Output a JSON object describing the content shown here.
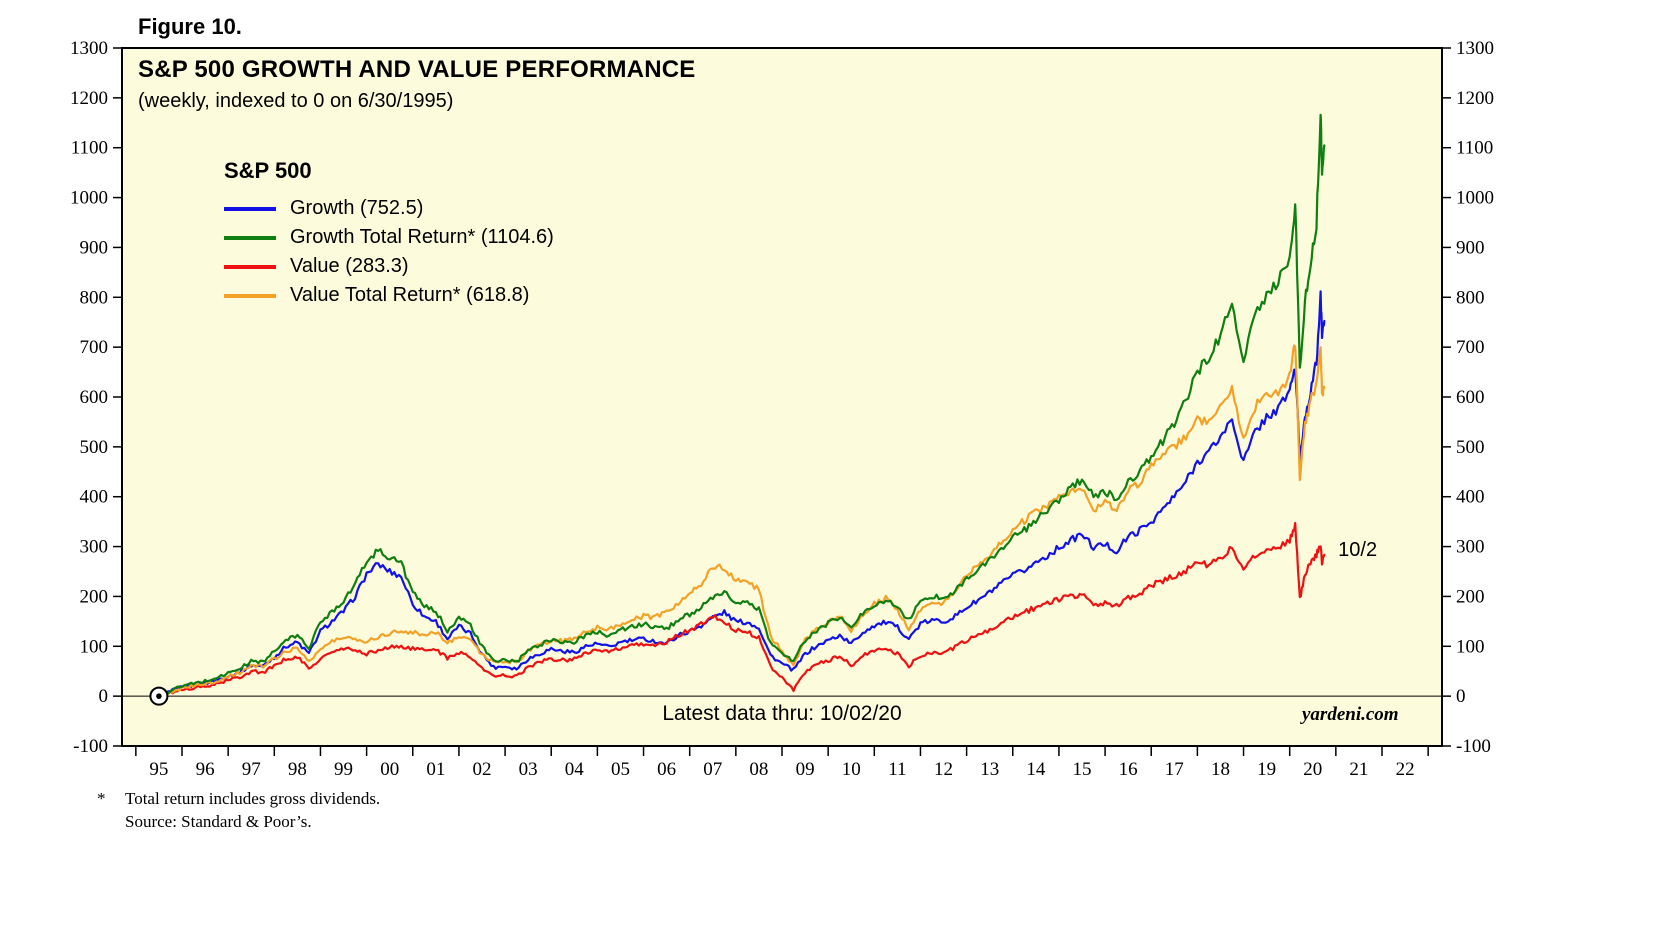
{
  "figure_label": "Figure 10.",
  "texts": {
    "latest_data": "Latest data thru: 10/02/20",
    "watermark": "yardeni.com",
    "footnote_mark": "*",
    "footnote_line1": "Total return includes gross dividends.",
    "footnote_line2": "Source: Standard & Poor’s."
  },
  "chart_data": {
    "type": "line",
    "title": "S&P 500 GROWTH AND VALUE PERFORMANCE",
    "subtitle": "(weekly, indexed to 0 on 6/30/1995)",
    "legend_title": "S&P 500",
    "legend_position": "top-left-inside",
    "grid": false,
    "xlim": [
      1994.7,
      2023.3
    ],
    "ylim": [
      -100,
      1300
    ],
    "ytick_step": 100,
    "x_first_year": 1995,
    "x_tick_labels": [
      "95",
      "96",
      "97",
      "98",
      "99",
      "00",
      "01",
      "02",
      "03",
      "04",
      "05",
      "06",
      "07",
      "08",
      "09",
      "10",
      "11",
      "12",
      "13",
      "14",
      "15",
      "16",
      "17",
      "18",
      "19",
      "20",
      "21",
      "22"
    ],
    "colors": {
      "plot_bg": "#FCFCDC",
      "axis": "#000000"
    },
    "draw_order": [
      0,
      2,
      3,
      1
    ],
    "x": [
      1995.5,
      1995.75,
      1996,
      1996.25,
      1996.5,
      1996.75,
      1997,
      1997.25,
      1997.5,
      1997.75,
      1998,
      1998.25,
      1998.5,
      1998.75,
      1999,
      1999.25,
      1999.5,
      1999.75,
      2000,
      2000.25,
      2000.5,
      2000.75,
      2001,
      2001.25,
      2001.5,
      2001.75,
      2002,
      2002.25,
      2002.5,
      2002.75,
      2003,
      2003.25,
      2003.5,
      2003.75,
      2004,
      2004.25,
      2004.5,
      2004.75,
      2005,
      2005.25,
      2005.5,
      2005.75,
      2006,
      2006.25,
      2006.5,
      2006.75,
      2007,
      2007.25,
      2007.5,
      2007.75,
      2008,
      2008.25,
      2008.5,
      2008.75,
      2009,
      2009.25,
      2009.5,
      2009.75,
      2010,
      2010.25,
      2010.5,
      2010.75,
      2011,
      2011.25,
      2011.5,
      2011.75,
      2012,
      2012.25,
      2012.5,
      2012.75,
      2013,
      2013.25,
      2013.5,
      2013.75,
      2014,
      2014.25,
      2014.5,
      2014.75,
      2015,
      2015.25,
      2015.5,
      2015.75,
      2016,
      2016.25,
      2016.5,
      2016.75,
      2017,
      2017.25,
      2017.5,
      2017.75,
      2018,
      2018.25,
      2018.5,
      2018.75,
      2019,
      2019.25,
      2019.5,
      2019.75,
      2020,
      2020.12,
      2020.22,
      2020.33,
      2020.45,
      2020.58,
      2020.67,
      2020.7,
      2020.75
    ],
    "series": [
      {
        "key": "growth",
        "name": "Growth (752.5)",
        "end_value": 752.5,
        "color": "#1212E8",
        "values": [
          0,
          10,
          18,
          22,
          26,
          32,
          40,
          48,
          62,
          60,
          78,
          100,
          108,
          85,
          130,
          150,
          170,
          200,
          245,
          265,
          250,
          240,
          185,
          160,
          150,
          115,
          140,
          125,
          85,
          58,
          60,
          55,
          75,
          85,
          95,
          90,
          88,
          100,
          105,
          98,
          108,
          112,
          115,
          110,
          105,
          122,
          130,
          142,
          158,
          168,
          150,
          148,
          138,
          82,
          65,
          52,
          85,
          100,
          112,
          122,
          105,
          128,
          142,
          148,
          138,
          115,
          145,
          152,
          150,
          160,
          178,
          192,
          208,
          225,
          242,
          252,
          268,
          282,
          298,
          312,
          325,
          298,
          305,
          290,
          320,
          332,
          350,
          375,
          400,
          430,
          470,
          490,
          520,
          555,
          470,
          530,
          560,
          575,
          615,
          660,
          475,
          560,
          610,
          670,
          800,
          730,
          752.5
        ]
      },
      {
        "key": "growth-total-return",
        "name": "Growth Total Return* (1104.6)",
        "end_value": 1104.6,
        "color": "#107E10",
        "values": [
          0,
          11,
          20,
          25,
          30,
          37,
          46,
          55,
          70,
          69,
          89,
          112,
          122,
          97,
          148,
          170,
          192,
          225,
          270,
          293,
          278,
          268,
          207,
          180,
          170,
          132,
          158,
          142,
          99,
          70,
          73,
          68,
          91,
          103,
          114,
          109,
          108,
          122,
          129,
          122,
          133,
          139,
          144,
          139,
          134,
          154,
          164,
          178,
          196,
          208,
          188,
          186,
          175,
          106,
          86,
          71,
          112,
          130,
          146,
          158,
          138,
          166,
          184,
          192,
          180,
          152,
          190,
          200,
          198,
          212,
          235,
          253,
          273,
          295,
          318,
          332,
          352,
          372,
          395,
          415,
          435,
          400,
          412,
          392,
          432,
          450,
          478,
          512,
          548,
          592,
          650,
          680,
          725,
          785,
          672,
          762,
          808,
          832,
          880,
          985,
          660,
          790,
          865,
          950,
          1170,
          1060,
          1104.6
        ]
      },
      {
        "key": "value",
        "name": "Value (283.3)",
        "end_value": 283.3,
        "color": "#EE1111",
        "values": [
          0,
          7,
          13,
          16,
          19,
          24,
          32,
          38,
          50,
          48,
          60,
          75,
          78,
          55,
          75,
          88,
          95,
          92,
          85,
          92,
          98,
          100,
          95,
          92,
          95,
          75,
          88,
          80,
          55,
          40,
          42,
          40,
          58,
          68,
          75,
          72,
          75,
          88,
          92,
          88,
          96,
          100,
          105,
          102,
          108,
          122,
          132,
          145,
          160,
          150,
          132,
          128,
          118,
          60,
          38,
          12,
          48,
          65,
          72,
          80,
          62,
          80,
          92,
          98,
          85,
          60,
          82,
          88,
          88,
          98,
          112,
          122,
          132,
          145,
          158,
          168,
          178,
          185,
          195,
          200,
          205,
          182,
          188,
          180,
          198,
          205,
          222,
          232,
          240,
          252,
          270,
          262,
          278,
          298,
          252,
          282,
          295,
          298,
          310,
          345,
          195,
          245,
          265,
          285,
          300,
          270,
          283.3
        ]
      },
      {
        "key": "value-total-return",
        "name": "Value Total Return* (618.8)",
        "end_value": 618.8,
        "color": "#F2A229",
        "values": [
          0,
          9,
          16,
          20,
          24,
          30,
          40,
          47,
          61,
          60,
          74,
          91,
          96,
          70,
          94,
          109,
          118,
          115,
          110,
          119,
          127,
          131,
          127,
          124,
          129,
          106,
          122,
          113,
          84,
          67,
          70,
          68,
          90,
          103,
          113,
          110,
          115,
          131,
          138,
          134,
          145,
          152,
          160,
          158,
          167,
          187,
          205,
          225,
          262,
          255,
          235,
          228,
          215,
          120,
          90,
          62,
          112,
          135,
          148,
          160,
          132,
          162,
          185,
          196,
          175,
          130,
          172,
          185,
          188,
          210,
          242,
          262,
          282,
          308,
          335,
          352,
          370,
          382,
          400,
          412,
          420,
          372,
          388,
          375,
          412,
          428,
          462,
          482,
          500,
          522,
          558,
          545,
          575,
          612,
          522,
          580,
          605,
          612,
          640,
          712,
          440,
          545,
          590,
          630,
          700,
          610,
          618.8
        ]
      }
    ],
    "start_marker": {
      "x": 1995.5,
      "y": 0
    },
    "annotation": {
      "text": "10/2",
      "x": 2021.05,
      "y": 293,
      "color": "#EE1111"
    }
  }
}
